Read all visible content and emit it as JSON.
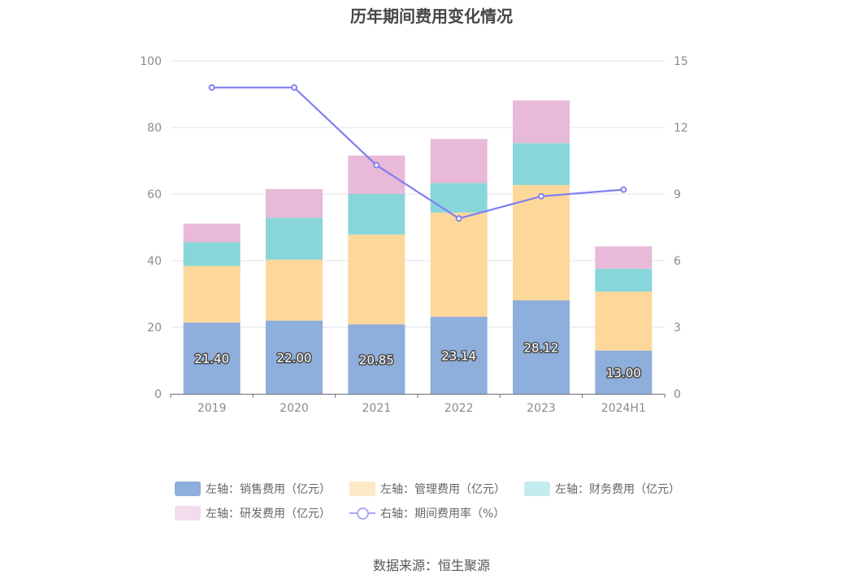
{
  "chart_data": {
    "type": "bar",
    "title": "历年期间费用变化情况",
    "categories": [
      "2019",
      "2020",
      "2021",
      "2022",
      "2023",
      "2024H1"
    ],
    "left_axis": {
      "ylim": [
        0,
        100
      ],
      "ticks": [
        "0",
        "20",
        "40",
        "60",
        "80",
        "100"
      ]
    },
    "right_axis": {
      "ylim": [
        0,
        15
      ],
      "ticks": [
        "0",
        "3",
        "6",
        "9",
        "12",
        "15"
      ]
    },
    "series": [
      {
        "name": "左轴：销售费用（亿元）",
        "type": "bar",
        "axis": "left",
        "stack": "total",
        "color": "#8eaedb",
        "values": [
          21.4,
          22.0,
          20.85,
          23.14,
          28.12,
          13.0
        ],
        "labels": [
          "21.40",
          "22.00",
          "20.85",
          "23.14",
          "28.12",
          "13.00"
        ]
      },
      {
        "name": "左轴：管理费用（亿元）",
        "type": "bar",
        "axis": "left",
        "stack": "total",
        "color": "#fdd89a",
        "values": [
          17.0,
          18.3,
          27.0,
          31.3,
          34.6,
          17.7
        ]
      },
      {
        "name": "左轴：财务费用（亿元）",
        "type": "bar",
        "axis": "left",
        "stack": "total",
        "color": "#88d6da",
        "values": [
          7.1,
          12.6,
          12.2,
          8.9,
          12.6,
          6.9
        ]
      },
      {
        "name": "左轴：研发费用（亿元）",
        "type": "bar",
        "axis": "left",
        "stack": "total",
        "color": "#e8b9d8",
        "values": [
          5.6,
          8.6,
          11.5,
          13.2,
          12.8,
          6.7
        ]
      },
      {
        "name": "右轴：期间费用率（%）",
        "type": "line",
        "axis": "right",
        "color": "#8080ef",
        "values": [
          13.8,
          13.8,
          10.3,
          7.9,
          8.9,
          9.2
        ]
      }
    ],
    "legend_placement": "bottom",
    "grid": true
  },
  "legend_colors": [
    "#8eaedb",
    "#fde9c7",
    "#c4ebed",
    "#f3dcec",
    "#a9a9f5"
  ],
  "source": "数据来源：恒生聚源"
}
